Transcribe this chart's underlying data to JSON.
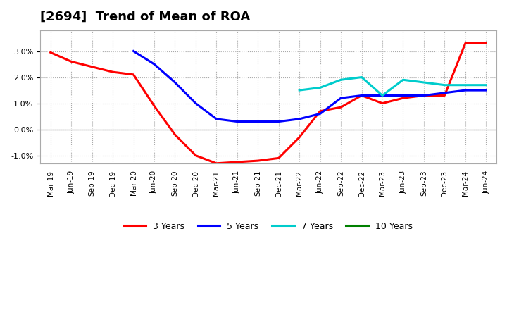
{
  "title": "[2694]  Trend of Mean of ROA",
  "title_fontsize": 13,
  "background_color": "#ffffff",
  "plot_bg_color": "#ffffff",
  "grid_color": "#aaaaaa",
  "ylim": [
    -0.013,
    0.038
  ],
  "yticks": [
    -0.01,
    0.0,
    0.01,
    0.02,
    0.03
  ],
  "x_tick_labels": [
    "Mar-19",
    "Jun-19",
    "Sep-19",
    "Dec-19",
    "Mar-20",
    "Jun-20",
    "Sep-20",
    "Dec-20",
    "Mar-21",
    "Jun-21",
    "Sep-21",
    "Dec-21",
    "Mar-22",
    "Jun-22",
    "Sep-22",
    "Dec-22",
    "Mar-23",
    "Jun-23",
    "Sep-23",
    "Dec-23",
    "Mar-24",
    "Jun-24"
  ],
  "series": {
    "3 Years": {
      "color": "#ff0000",
      "x_indices": [
        0,
        1,
        2,
        3,
        4,
        5,
        6,
        7,
        8,
        9,
        10,
        11,
        12,
        13,
        14,
        15,
        16,
        17,
        18,
        19,
        20,
        21
      ],
      "values": [
        0.0295,
        0.026,
        0.024,
        0.022,
        0.021,
        0.009,
        -0.002,
        -0.01,
        -0.013,
        -0.0125,
        -0.012,
        -0.011,
        -0.003,
        0.007,
        0.0085,
        0.013,
        0.01,
        0.012,
        0.013,
        0.013,
        0.033,
        0.033
      ]
    },
    "5 Years": {
      "color": "#0000ff",
      "x_indices": [
        4,
        5,
        6,
        7,
        8,
        9,
        10,
        11,
        12,
        13,
        14,
        15,
        16,
        17,
        18,
        19,
        20,
        21
      ],
      "values": [
        0.03,
        0.025,
        0.018,
        0.01,
        0.004,
        0.003,
        0.003,
        0.003,
        0.004,
        0.006,
        0.012,
        0.013,
        0.013,
        0.013,
        0.013,
        0.014,
        0.015,
        0.015
      ]
    },
    "7 Years": {
      "color": "#00cccc",
      "x_indices": [
        12,
        13,
        14,
        15,
        16,
        17,
        18,
        19,
        20,
        21
      ],
      "values": [
        0.015,
        0.016,
        0.019,
        0.02,
        0.013,
        0.019,
        0.018,
        0.017,
        0.017,
        0.017
      ]
    },
    "10 Years": {
      "color": "#008000",
      "x_indices": [],
      "values": []
    }
  },
  "line_width": 2.2
}
